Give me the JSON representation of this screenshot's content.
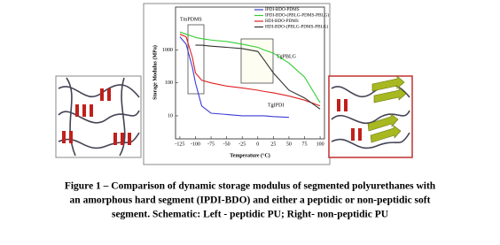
{
  "chart_data": {
    "type": "line",
    "xlabel": "Temperature (°C)",
    "ylabel": "Storage Modulus (MPa)",
    "annotations": [
      "TmPDMS",
      "TgPBLG",
      "TgIPDI"
    ],
    "x": [
      -125,
      -115,
      -105,
      -100,
      -90,
      -75,
      -50,
      -25,
      0,
      10,
      25,
      50,
      75,
      100
    ],
    "series": [
      {
        "name": "IPDI-BDO-PDMS",
        "color": "#3b3bd6",
        "values": [
          2500,
          1500,
          300,
          100,
          20,
          12,
          11,
          10,
          10,
          10,
          9.5,
          9,
          null,
          null
        ]
      },
      {
        "name": "IPDI-BDO-(PBLG-PDMS-PBLG)",
        "color": "#33cc33",
        "values": [
          3500,
          3000,
          2600,
          2400,
          2200,
          2000,
          1800,
          1500,
          1200,
          1000,
          800,
          400,
          150,
          25
        ]
      },
      {
        "name": "HDI-BDO-PDMS",
        "color": "#e02020",
        "values": [
          3000,
          2500,
          600,
          200,
          120,
          100,
          80,
          70,
          60,
          55,
          50,
          40,
          30,
          20
        ]
      },
      {
        "name": "HDI-BDO-(PBLG-PDMS-PBLG)",
        "color": "#333333",
        "values": [
          null,
          null,
          null,
          1400,
          1400,
          1300,
          1200,
          1100,
          900,
          500,
          200,
          60,
          35,
          16
        ]
      }
    ],
    "xlim": [
      -132,
      107
    ],
    "ylim": [
      2,
      20000
    ],
    "log_y": true,
    "xticks": [
      -125,
      -100,
      -75,
      -50,
      -25,
      0,
      25,
      50,
      75,
      100
    ],
    "yticks": [
      10,
      100,
      1000
    ],
    "legend": "top-right"
  },
  "caption": [
    "Figure 1 – Comparison of dynamic storage modulus of segmented polyurethanes with",
    "an amorphous hard segment (IPDI-BDO) and either a peptidic or non-peptidic soft",
    "segment.  Schematic: Left - peptidic PU; Right- non-peptidic PU"
  ]
}
